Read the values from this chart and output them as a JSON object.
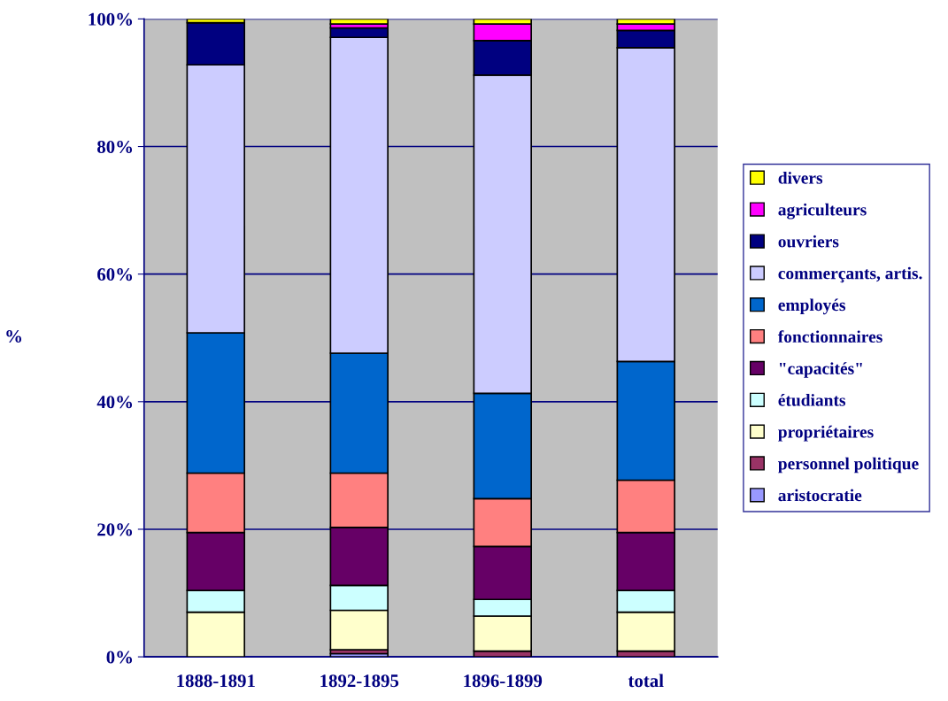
{
  "chart_data": {
    "type": "bar",
    "stacked": true,
    "ylabel": "%",
    "categories": [
      "1888-1891",
      "1892-1895",
      "1896-1899",
      "total"
    ],
    "series": [
      {
        "name": "aristocratie",
        "color": "#9999ff",
        "values": [
          0,
          0.5,
          null,
          null
        ]
      },
      {
        "name": "personnel politique",
        "color": "#993366",
        "values": [
          null,
          0.6,
          0.9,
          0.9
        ]
      },
      {
        "name": "propriétaires",
        "color": "#ffffcc",
        "values": [
          7.0,
          6.2,
          5.5,
          6.1
        ]
      },
      {
        "name": "étudiants",
        "color": "#ccffff",
        "values": [
          3.4,
          3.9,
          2.6,
          3.4
        ]
      },
      {
        "name": "\"capacités\"",
        "color": "#660066",
        "values": [
          9.1,
          9.1,
          8.3,
          9.1
        ]
      },
      {
        "name": "fonctionnaires",
        "color": "#ff8080",
        "values": [
          9.3,
          8.5,
          7.5,
          8.2
        ]
      },
      {
        "name": "employés",
        "color": "#0066cc",
        "values": [
          22.0,
          18.8,
          16.5,
          18.6
        ]
      },
      {
        "name": "commerçants, artis.",
        "color": "#ccccff",
        "values": [
          42.0,
          49.5,
          49.9,
          49.2
        ]
      },
      {
        "name": "ouvriers",
        "color": "#000080",
        "values": [
          6.6,
          1.5,
          5.4,
          2.7
        ]
      },
      {
        "name": "agriculteurs",
        "color": "#ff00ff",
        "values": [
          0,
          0.6,
          2.6,
          1.0
        ]
      },
      {
        "name": "divers",
        "color": "#ffff00",
        "values": [
          0.6,
          0.8,
          0.8,
          0.8
        ]
      }
    ],
    "ylim": [
      0,
      100
    ],
    "yticks": [
      {
        "value": 0,
        "label": "0%"
      },
      {
        "value": 20,
        "label": "20%"
      },
      {
        "value": 40,
        "label": "40%"
      },
      {
        "value": 60,
        "label": "60%"
      },
      {
        "value": 80,
        "label": "80%"
      },
      {
        "value": 100,
        "label": "100%"
      }
    ],
    "grid": "y",
    "legend": "right"
  }
}
